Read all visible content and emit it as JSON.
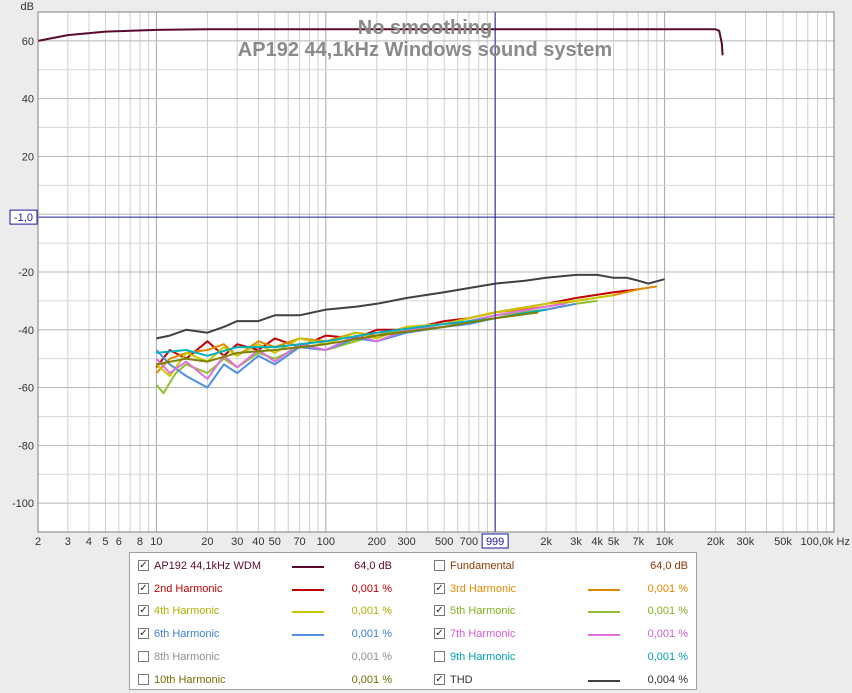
{
  "chart_data": {
    "type": "line",
    "title": "No smoothing",
    "subtitle": "AP192 44,1kHz Windows sound system",
    "ylabel": "dB",
    "xlabel": "",
    "x_scale": "log",
    "xlim": [
      2,
      100000
    ],
    "ylim": [
      -110,
      70
    ],
    "grid": true,
    "x_ticks": [
      {
        "v": 2,
        "label": "2"
      },
      {
        "v": 3,
        "label": "3"
      },
      {
        "v": 4,
        "label": "4"
      },
      {
        "v": 5,
        "label": "5"
      },
      {
        "v": 6,
        "label": "6"
      },
      {
        "v": 8,
        "label": "8"
      },
      {
        "v": 10,
        "label": "10"
      },
      {
        "v": 20,
        "label": "20"
      },
      {
        "v": 30,
        "label": "30"
      },
      {
        "v": 40,
        "label": "40"
      },
      {
        "v": 50,
        "label": "50"
      },
      {
        "v": 70,
        "label": "70"
      },
      {
        "v": 100,
        "label": "100"
      },
      {
        "v": 200,
        "label": "200"
      },
      {
        "v": 300,
        "label": "300"
      },
      {
        "v": 500,
        "label": "500"
      },
      {
        "v": 700,
        "label": "700"
      },
      {
        "v": 2000,
        "label": "2k"
      },
      {
        "v": 3000,
        "label": "3k"
      },
      {
        "v": 4000,
        "label": "4k"
      },
      {
        "v": 5000,
        "label": "5k"
      },
      {
        "v": 7000,
        "label": "7k"
      },
      {
        "v": 10000,
        "label": "10k"
      },
      {
        "v": 20000,
        "label": "20k"
      },
      {
        "v": 30000,
        "label": "30k"
      },
      {
        "v": 50000,
        "label": "50k"
      },
      {
        "v": 100000,
        "label": "100,0k Hz"
      }
    ],
    "y_ticks": [
      {
        "v": 60,
        "label": "60"
      },
      {
        "v": 40,
        "label": "40"
      },
      {
        "v": 20,
        "label": "20"
      },
      {
        "v": -20,
        "label": "-20"
      },
      {
        "v": -40,
        "label": "-40"
      },
      {
        "v": -60,
        "label": "-60"
      },
      {
        "v": -80,
        "label": "-80"
      },
      {
        "v": -100,
        "label": "-100"
      }
    ],
    "cursor": {
      "x": 999,
      "y": -1.0,
      "x_label": "999",
      "y_label": "-1,0"
    },
    "series": [
      {
        "name": "AP192 44,1kHz WDM",
        "color": "#5a0a2e",
        "x": [
          2,
          3,
          5,
          10,
          20,
          50,
          100,
          500,
          1000,
          5000,
          10000,
          18000,
          20000,
          21000,
          21800,
          22000
        ],
        "y": [
          60,
          62,
          63.2,
          63.8,
          64,
          64,
          64,
          64,
          64,
          64,
          64,
          64,
          64,
          63.5,
          59,
          55
        ]
      },
      {
        "name": "2nd Harmonic",
        "color": "#c00000",
        "x": [
          10,
          12,
          15,
          20,
          25,
          30,
          40,
          50,
          70,
          100,
          150,
          200,
          300,
          500,
          700,
          1000,
          2000,
          3000,
          5000,
          7000
        ],
        "y": [
          -53,
          -47,
          -50,
          -44,
          -49,
          -45,
          -47,
          -43,
          -46,
          -42,
          -43,
          -40,
          -40,
          -37,
          -36,
          -34,
          -31,
          -29,
          -27,
          -26
        ]
      },
      {
        "name": "3rd Harmonic",
        "color": "#e08a00",
        "x": [
          10,
          12,
          15,
          20,
          25,
          30,
          40,
          50,
          70,
          100,
          150,
          200,
          300,
          500,
          700,
          1000,
          2000,
          3000,
          5000,
          7000,
          9000
        ],
        "y": [
          -55,
          -50,
          -48,
          -47,
          -45,
          -49,
          -44,
          -46,
          -43,
          -44,
          -41,
          -42,
          -39,
          -38,
          -36,
          -34,
          -32,
          -30,
          -28,
          -26,
          -25
        ]
      },
      {
        "name": "4th Harmonic",
        "color": "#c8c800",
        "x": [
          10,
          12,
          15,
          20,
          25,
          30,
          40,
          50,
          70,
          100,
          150,
          200,
          300,
          500,
          700,
          1000,
          2000,
          3000,
          5000
        ],
        "y": [
          -52,
          -56,
          -48,
          -51,
          -46,
          -49,
          -45,
          -48,
          -43,
          -45,
          -41,
          -43,
          -39,
          -38,
          -36,
          -34,
          -31,
          -30,
          -28
        ]
      },
      {
        "name": "5th Harmonic",
        "color": "#90c030",
        "x": [
          10,
          11,
          13,
          15,
          20,
          25,
          30,
          40,
          50,
          70,
          100,
          150,
          200,
          300,
          500,
          700,
          1000,
          2000,
          3000,
          4000
        ],
        "y": [
          -59,
          -62,
          -55,
          -52,
          -55,
          -50,
          -53,
          -48,
          -50,
          -46,
          -47,
          -44,
          -42,
          -40,
          -39,
          -37,
          -35,
          -33,
          -31,
          -30
        ]
      },
      {
        "name": "6th Harmonic",
        "color": "#5090e0",
        "x": [
          10,
          12,
          15,
          20,
          25,
          30,
          40,
          50,
          70,
          100,
          150,
          200,
          300,
          500,
          700,
          1000,
          2000,
          3000
        ],
        "y": [
          -47,
          -52,
          -56,
          -60,
          -52,
          -55,
          -49,
          -52,
          -46,
          -47,
          -43,
          -44,
          -41,
          -39,
          -38,
          -36,
          -33,
          -31
        ]
      },
      {
        "name": "7th Harmonic",
        "color": "#e070e0",
        "x": [
          10,
          12,
          15,
          20,
          25,
          30,
          40,
          50,
          70,
          100,
          150,
          200,
          300,
          500,
          700,
          1000,
          2000,
          2600
        ],
        "y": [
          -50,
          -55,
          -51,
          -57,
          -49,
          -53,
          -47,
          -51,
          -45,
          -47,
          -42,
          -44,
          -40,
          -39,
          -37,
          -35,
          -32,
          -31
        ]
      },
      {
        "name": "9th Harmonic",
        "color": "#00b0c0",
        "x": [
          10,
          15,
          20,
          30,
          50,
          100,
          200,
          500,
          1000,
          2000
        ],
        "y": [
          -48,
          -47,
          -49,
          -46,
          -46,
          -44,
          -41,
          -38,
          -36,
          -33
        ]
      },
      {
        "name": "10th Harmonic",
        "color": "#808000",
        "x": [
          10,
          15,
          20,
          30,
          50,
          100,
          200,
          500,
          1000,
          1800
        ],
        "y": [
          -52,
          -50,
          -51,
          -48,
          -47,
          -45,
          -42,
          -39,
          -36,
          -34
        ]
      },
      {
        "name": "THD",
        "color": "#404040",
        "x": [
          10,
          12,
          15,
          20,
          25,
          30,
          40,
          50,
          70,
          100,
          150,
          200,
          300,
          500,
          1000,
          1500,
          2000,
          3000,
          4000,
          5000,
          6000,
          7000,
          8000,
          10000
        ],
        "y": [
          -43,
          -42,
          -40,
          -41,
          -39,
          -37,
          -37,
          -35,
          -35,
          -33,
          -32,
          -31,
          -29,
          -27,
          -24,
          -23,
          -22,
          -21,
          -21,
          -22,
          -22,
          -23,
          -24,
          -22.5
        ]
      }
    ]
  },
  "legend": {
    "rows": [
      {
        "left": {
          "name": "AP192 44,1kHz WDM",
          "color": "#5a0a2e",
          "text_color": "#5a0a2e",
          "checked": true,
          "value": "64,0 dB",
          "show_line": true
        },
        "right": {
          "name": "Fundamental",
          "color": "#8a3a00",
          "text_color": "#8a3a00",
          "checked": false,
          "value": "64,0 dB",
          "show_line": false
        }
      },
      {
        "left": {
          "name": "2nd Harmonic",
          "color": "#c00000",
          "text_color": "#c00000",
          "checked": true,
          "value": "0,001 %",
          "show_line": true
        },
        "right": {
          "name": "3rd Harmonic",
          "color": "#e08a00",
          "text_color": "#e08a00",
          "checked": true,
          "value": "0,001 %",
          "show_line": true
        }
      },
      {
        "left": {
          "name": "4th Harmonic",
          "color": "#c8c800",
          "text_color": "#b0b000",
          "checked": true,
          "value": "0,001 %",
          "show_line": true
        },
        "right": {
          "name": "5th Harmonic",
          "color": "#90c030",
          "text_color": "#80b020",
          "checked": true,
          "value": "0,001 %",
          "show_line": true
        }
      },
      {
        "left": {
          "name": "6th Harmonic",
          "color": "#5090e0",
          "text_color": "#4080d0",
          "checked": true,
          "value": "0,001 %",
          "show_line": true
        },
        "right": {
          "name": "7th Harmonic",
          "color": "#e070e0",
          "text_color": "#d060d0",
          "checked": true,
          "value": "0,001 %",
          "show_line": true
        }
      },
      {
        "left": {
          "name": "8th Harmonic",
          "color": "#909090",
          "text_color": "#909090",
          "checked": false,
          "value": "0,001 %",
          "show_line": false
        },
        "right": {
          "name": "9th Harmonic",
          "color": "#00b0c0",
          "text_color": "#00a0b0",
          "checked": false,
          "value": "0,001 %",
          "show_line": false
        }
      },
      {
        "left": {
          "name": "10th Harmonic",
          "color": "#808000",
          "text_color": "#707000",
          "checked": false,
          "value": "0,001 %",
          "show_line": false
        },
        "right": {
          "name": "THD",
          "color": "#404040",
          "text_color": "#303030",
          "checked": true,
          "value": "0,004 %",
          "show_line": true
        }
      }
    ]
  }
}
